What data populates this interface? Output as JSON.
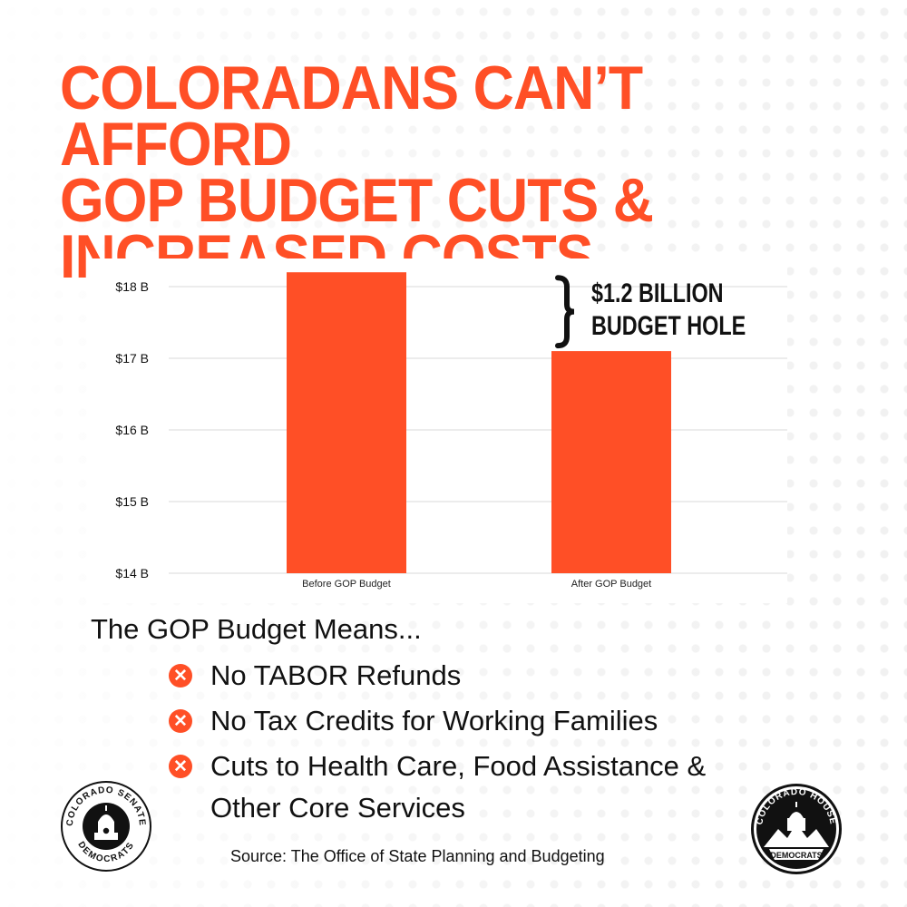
{
  "headline": {
    "line1": "COLORADANS CAN’T AFFORD",
    "line2": "GOP BUDGET CUTS &",
    "line3": "INCREASED COSTS"
  },
  "chart_data": {
    "type": "bar",
    "categories": [
      "Before GOP Budget",
      "After GOP Budget"
    ],
    "values": [
      18.2,
      17.1
    ],
    "ylim": [
      14,
      18.3
    ],
    "yticks": [
      14,
      15,
      16,
      17,
      18
    ],
    "ytick_labels": [
      "$14 B",
      "$15 B",
      "$16 B",
      "$17 B",
      "$18 B"
    ],
    "bar_color": "#ff4f26",
    "grid": true,
    "annotation": {
      "line1": "$1.2 BILLION",
      "line2": "BUDGET HOLE"
    }
  },
  "means": {
    "heading": "The GOP Budget Means...",
    "items": [
      "No TABOR Refunds",
      "No Tax Credits for Working Families",
      "Cuts to Health Care, Food Assistance & Other Core Services"
    ]
  },
  "source": "Source: The Office of State Planning and Budgeting",
  "logos": {
    "senate": {
      "top": "COLORADO SENATE",
      "bottom": "DEMOCRATS",
      "icon": "capitol-dome-icon"
    },
    "house": {
      "top": "COLORADO HOUSE",
      "bottom": "DEMOCRATS",
      "icon": "capitol-mountains-icon"
    }
  },
  "colors": {
    "accent": "#ff4f26",
    "text": "#111111"
  }
}
